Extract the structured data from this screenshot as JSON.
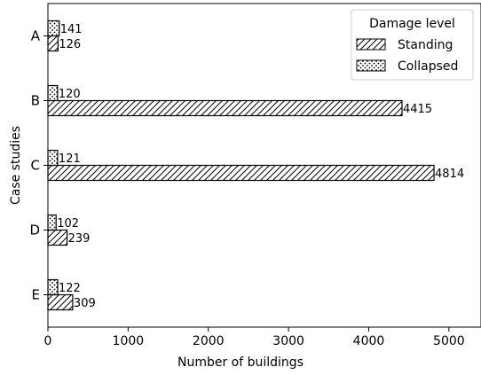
{
  "chart_data": {
    "type": "bar",
    "orientation": "horizontal",
    "categories": [
      "A",
      "B",
      "C",
      "D",
      "E"
    ],
    "series": [
      {
        "name": "Standing",
        "values": [
          126,
          4415,
          4814,
          239,
          309
        ],
        "hatch": "diagonal",
        "color": "#ffffff"
      },
      {
        "name": "Collapsed",
        "values": [
          141,
          120,
          121,
          102,
          122
        ],
        "hatch": "dots",
        "color": "#ffffff"
      }
    ],
    "xlabel": "Number of buildings",
    "ylabel": "Case studies",
    "xlim": [
      0,
      5400
    ],
    "xticks": [
      0,
      1000,
      2000,
      3000,
      4000,
      5000
    ],
    "grid": false,
    "legend": {
      "title": "Damage level",
      "placement": "top-right"
    },
    "data_labels": true
  }
}
